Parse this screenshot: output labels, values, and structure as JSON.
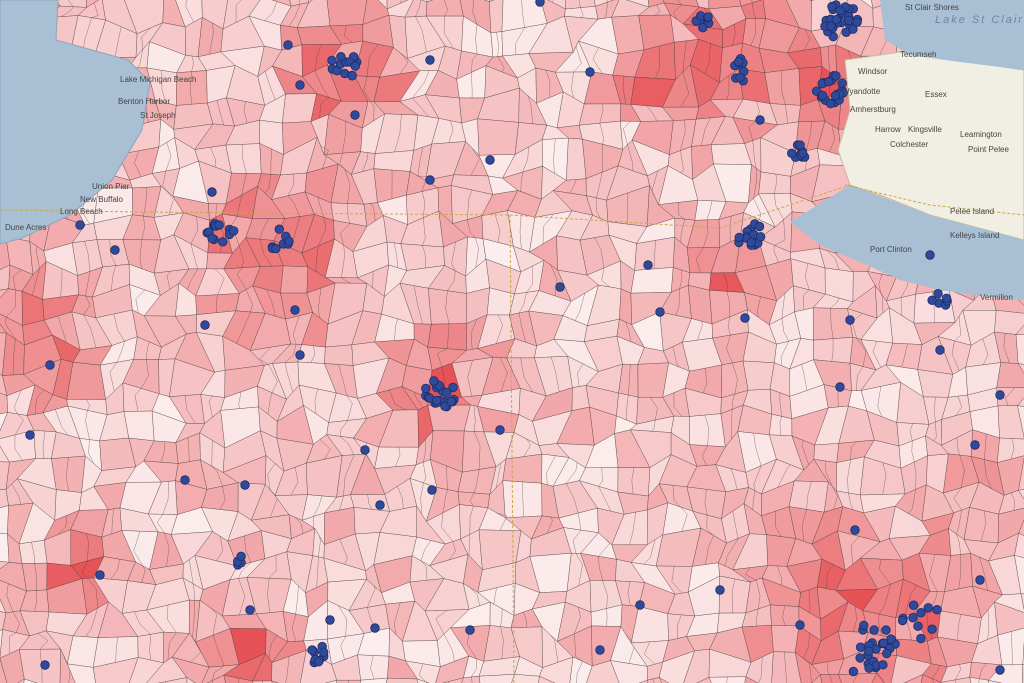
{
  "map": {
    "labels": [
      "Lake St Clair",
      "St Clair Shores",
      "Tecumseh",
      "Windsor",
      "Wyandotte",
      "Essex",
      "Amherstburg",
      "Harrow",
      "Kingsville",
      "Leamington",
      "Colchester",
      "Pelee Island",
      "Point Pelee",
      "Lake Michigan Beach",
      "Benton Harbor",
      "St Joseph",
      "Long Beach",
      "Dune Acres",
      "New Buffalo",
      "Union Pier",
      "Kelleys Island",
      "Port Clinton",
      "Vermilion"
    ]
  }
}
